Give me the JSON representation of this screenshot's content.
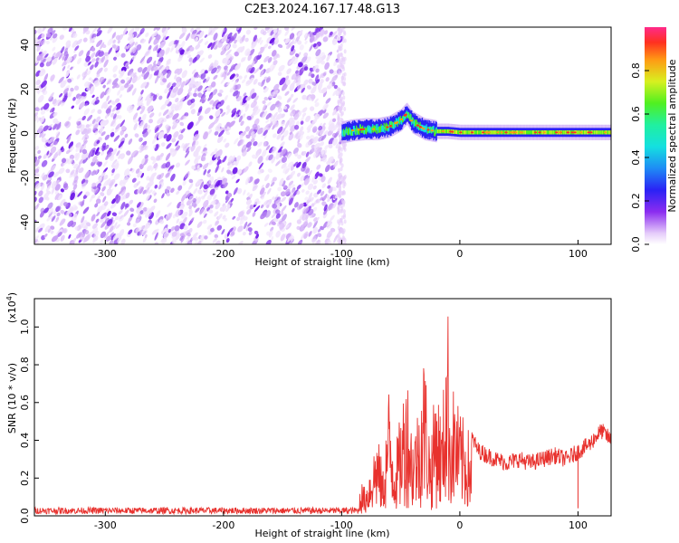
{
  "figure": {
    "title": "C2E3.2024.167.17.48.G13"
  },
  "chart_data": [
    {
      "type": "heatmap",
      "xlabel": "Height of straight line (km)",
      "ylabel": "Frequency (Hz)",
      "xlim": [
        -360,
        128
      ],
      "ylim": [
        -50,
        48
      ],
      "xticks": [
        -300,
        -200,
        -100,
        0,
        100
      ],
      "yticks": [
        -40,
        -20,
        0,
        20,
        40
      ],
      "noise_region_x": [
        -360,
        -100
      ],
      "ridge": {
        "description_points_x": [
          -100,
          -90,
          -80,
          -70,
          -60,
          -50,
          -45,
          -40,
          -30,
          -20,
          -10,
          0,
          20,
          40,
          60,
          80,
          100,
          128
        ],
        "description_points_y": [
          0.5,
          1.5,
          2,
          2,
          3,
          6,
          9,
          5,
          2,
          1,
          1,
          0.5,
          0.5,
          0.5,
          0.5,
          0.5,
          0.5,
          0.5
        ]
      },
      "colorbar": {
        "label": "Normalized spectral amplitude",
        "range": [
          0,
          1
        ],
        "ticks": [
          0.0,
          0.2,
          0.4,
          0.6,
          0.8
        ],
        "tick_labels": [
          "0.0",
          "0.2",
          "0.4",
          "0.6",
          "0.8"
        ],
        "colormap": "rainbow"
      }
    },
    {
      "type": "line",
      "xlabel": "Height of straight line (km)",
      "ylabel": "SNR (10 * v/v)",
      "exponent_label": "(x10",
      "exponent_sup": "4",
      "exponent_close": ")",
      "xlim": [
        -360,
        128
      ],
      "ylim": [
        0,
        1.15
      ],
      "xticks": [
        -300,
        -200,
        -100,
        0,
        100
      ],
      "yticks": [
        0.0,
        0.2,
        0.4,
        0.6,
        0.8,
        1.0
      ],
      "ytick_labels": [
        "0.0",
        "0.2",
        "0.4",
        "0.6",
        "0.8",
        "1.0"
      ],
      "series": [
        {
          "color": "#e8322e",
          "x": [
            -360,
            -300,
            -200,
            -120,
            -100,
            -90,
            -85,
            -80,
            -75,
            -70,
            -65,
            -60,
            -55,
            -50,
            -45,
            -40,
            -35,
            -30,
            -25,
            -20,
            -15,
            -12,
            -10,
            -8,
            -5,
            0,
            5,
            10,
            15,
            20,
            30,
            40,
            50,
            60,
            70,
            80,
            90,
            100,
            105,
            110,
            115,
            120,
            128
          ],
          "y": [
            0.02,
            0.02,
            0.02,
            0.02,
            0.03,
            0.05,
            0.2,
            0.15,
            0.3,
            0.45,
            0.25,
            0.7,
            0.35,
            0.55,
            0.82,
            0.45,
            0.6,
            0.92,
            0.4,
            0.75,
            0.5,
            1.0,
            1.1,
            0.6,
            0.7,
            0.55,
            0.5,
            0.42,
            0.35,
            0.33,
            0.3,
            0.28,
            0.3,
            0.28,
            0.3,
            0.32,
            0.3,
            0.34,
            0.36,
            0.38,
            0.42,
            0.45,
            0.4
          ]
        }
      ]
    }
  ]
}
